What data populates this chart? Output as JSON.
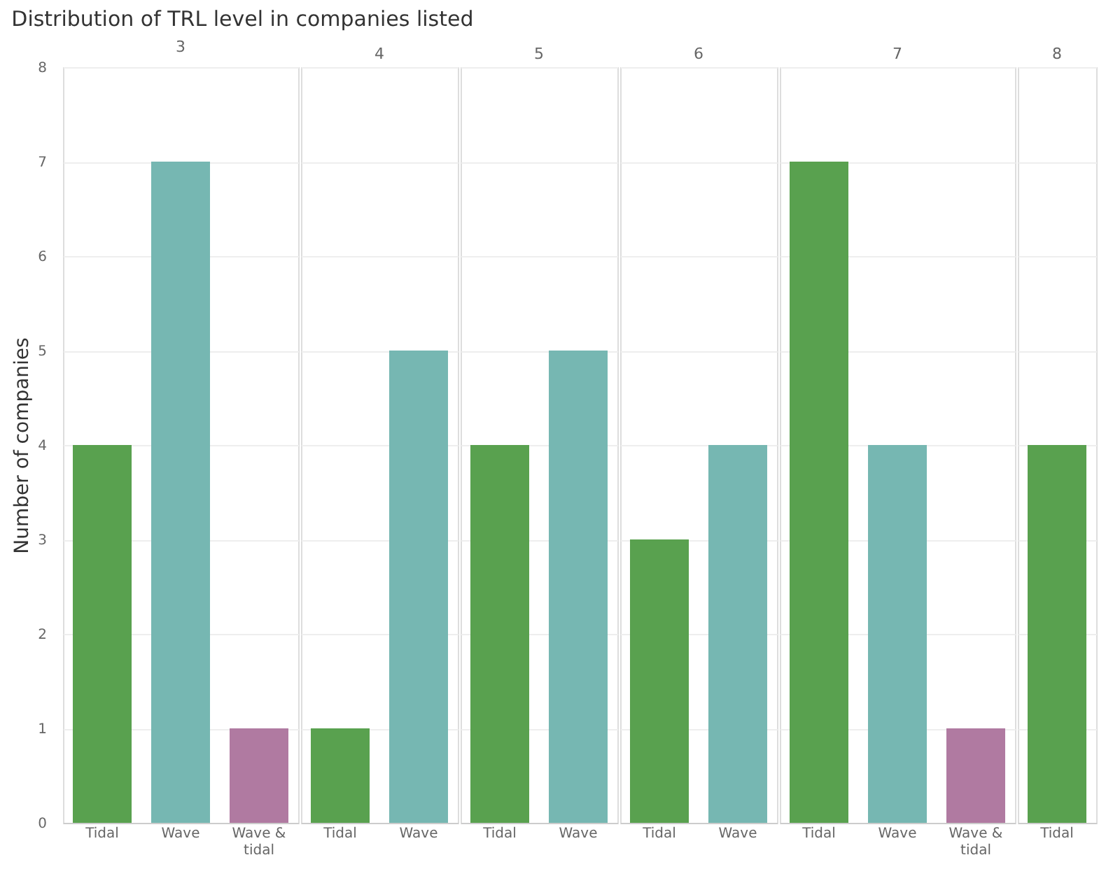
{
  "chart_data": [
    {
      "type": "other",
      "title": "Distribution of TRL level in companies listed"
    },
    {
      "type": "bar",
      "title": "3",
      "ylabel": "Number of companies",
      "categories": [
        "Tidal",
        "Wave",
        "Wave & tidal"
      ],
      "values": [
        4,
        7,
        1
      ],
      "colors": [
        "#59a14f",
        "#76b7b2",
        "#b07aa1"
      ],
      "ylim": [
        0,
        8
      ],
      "yticks": [
        0,
        1,
        2,
        3,
        4,
        5,
        6,
        7,
        8
      ],
      "grid": "y"
    },
    {
      "type": "bar",
      "title": "4",
      "categories": [
        "Tidal",
        "Wave"
      ],
      "values": [
        1,
        5
      ],
      "colors": [
        "#59a14f",
        "#76b7b2"
      ],
      "ylim": [
        0,
        8
      ],
      "yticks": [
        0,
        1,
        2,
        3,
        4,
        5,
        6,
        7,
        8
      ],
      "grid": "y",
      "tick_labels": "x"
    },
    {
      "type": "bar",
      "title": "5",
      "categories": [
        "Tidal",
        "Wave"
      ],
      "values": [
        4,
        5
      ],
      "colors": [
        "#59a14f",
        "#76b7b2"
      ],
      "ylim": [
        0,
        8
      ],
      "yticks": [
        0,
        1,
        2,
        3,
        4,
        5,
        6,
        7,
        8
      ],
      "grid": "y",
      "tick_labels": "x"
    },
    {
      "type": "bar",
      "title": "6",
      "categories": [
        "Tidal",
        "Wave"
      ],
      "values": [
        3,
        4
      ],
      "colors": [
        "#59a14f",
        "#76b7b2"
      ],
      "ylim": [
        0,
        8
      ],
      "yticks": [
        0,
        1,
        2,
        3,
        4,
        5,
        6,
        7,
        8
      ],
      "grid": "y",
      "tick_labels": "x"
    },
    {
      "type": "bar",
      "title": "7",
      "categories": [
        "Tidal",
        "Wave",
        "Wave & tidal"
      ],
      "values": [
        7,
        4,
        1
      ],
      "colors": [
        "#59a14f",
        "#76b7b2",
        "#b07aa1"
      ],
      "ylim": [
        0,
        8
      ],
      "yticks": [
        0,
        1,
        2,
        3,
        4,
        5,
        6,
        7,
        8
      ],
      "grid": "y",
      "tick_labels": "x"
    },
    {
      "type": "bar",
      "title": "8",
      "categories": [
        "Tidal"
      ],
      "values": [
        4
      ],
      "colors": [
        "#59a14f"
      ],
      "ylim": [
        0,
        8
      ],
      "yticks": [
        0,
        1,
        2,
        3,
        4,
        5,
        6,
        7,
        8
      ],
      "grid": "y",
      "tick_labels": "x"
    }
  ]
}
